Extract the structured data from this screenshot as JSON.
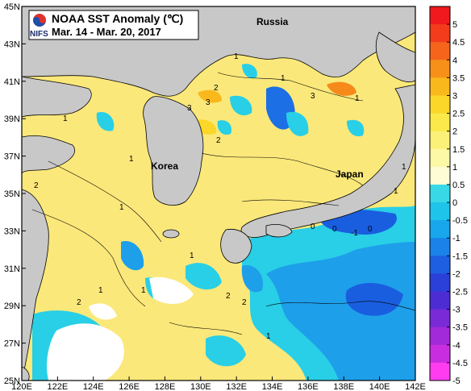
{
  "title": "NOAA SST Anomaly (℃)",
  "subtitle": "Mar. 14 - Mar. 20, 2017",
  "logo_text": "NIFS",
  "logo_icon": "taegeuk-emblem-icon",
  "places": {
    "russia": "Russia",
    "korea": "Korea",
    "japan": "Japan"
  },
  "x_ticks": [
    "120E",
    "122E",
    "124E",
    "126E",
    "128E",
    "130E",
    "132E",
    "134E",
    "136E",
    "138E",
    "140E",
    "142E"
  ],
  "y_ticks": [
    "45N",
    "43N",
    "41N",
    "39N",
    "37N",
    "35N",
    "33N",
    "31N",
    "29N",
    "27N",
    "25N"
  ],
  "colorbar": {
    "labels": [
      "5",
      "4.5",
      "4",
      "3.5",
      "3",
      "2.5",
      "2",
      "1.5",
      "1",
      "0.5",
      "0",
      "-0.5",
      "-1",
      "-1.5",
      "-2",
      "-2.5",
      "-3",
      "-3.5",
      "-4",
      "-4.5",
      "-5"
    ],
    "colors": [
      "#f0191e",
      "#f23c1c",
      "#f5641a",
      "#f79018",
      "#f9b81c",
      "#fad728",
      "#fbe84a",
      "#fcf178",
      "#fdf8a6",
      "#fefcd4",
      "#38d8e6",
      "#1ec4ea",
      "#18a6ec",
      "#1a82e8",
      "#1d5fe0",
      "#2a40d8",
      "#4d2cd4",
      "#7a2ad6",
      "#a22ad8",
      "#c82ee0",
      "#ff3cf0"
    ]
  },
  "contour_labels": [
    "1",
    "1",
    "1",
    "2",
    "2",
    "3",
    "3",
    "1",
    "1",
    "2",
    "1",
    "0",
    "0",
    "-1",
    "2",
    "1",
    "1",
    "2",
    "0",
    "1",
    "1",
    "1",
    "2",
    "3",
    "1"
  ],
  "colors": {
    "land": "#c8c8c8",
    "warm": "#fbe65a",
    "cool": "#28cfe6",
    "cold": "#1c6fe4",
    "hot": "#f2641c"
  }
}
